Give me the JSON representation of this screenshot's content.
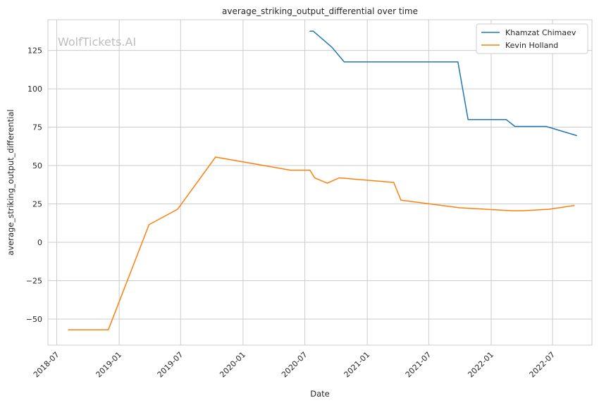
{
  "watermark": "WolfTickets.AI",
  "chart_data": {
    "type": "line",
    "title": "average_striking_output_differential over time",
    "xlabel": "Date",
    "ylabel": "average_striking_output_differential",
    "x_ticks": [
      "2018-07",
      "2019-01",
      "2019-07",
      "2020-01",
      "2020-07",
      "2021-01",
      "2021-07",
      "2022-01",
      "2022-07"
    ],
    "y_ticks": [
      -50,
      -25,
      0,
      25,
      50,
      75,
      100,
      125
    ],
    "xlim": [
      "2018-06-05",
      "2022-10-25"
    ],
    "ylim": [
      -67,
      145
    ],
    "grid": true,
    "legend_position": "top-right",
    "series": [
      {
        "name": "Khamzat Chimaev",
        "color": "#1f77b4",
        "points": [
          [
            "2020-07-16",
            137.5
          ],
          [
            "2020-07-26",
            137.5
          ],
          [
            "2020-09-19",
            127
          ],
          [
            "2020-10-25",
            117.5
          ],
          [
            "2021-09-25",
            117.5
          ],
          [
            "2021-10-25",
            80
          ],
          [
            "2022-02-14",
            80
          ],
          [
            "2022-03-12",
            75.5
          ],
          [
            "2022-06-12",
            75.5
          ],
          [
            "2022-09-10",
            69.5
          ]
        ]
      },
      {
        "name": "Kevin Holland",
        "color": "#ff7f0e",
        "points": [
          [
            "2018-08-04",
            -57
          ],
          [
            "2018-11-30",
            -57
          ],
          [
            "2019-03-30",
            11.5
          ],
          [
            "2019-06-22",
            21.5
          ],
          [
            "2019-10-12",
            55.5
          ],
          [
            "2020-05-20",
            47
          ],
          [
            "2020-07-16",
            47
          ],
          [
            "2020-07-30",
            42
          ],
          [
            "2020-09-05",
            38.5
          ],
          [
            "2020-10-10",
            42
          ],
          [
            "2021-03-20",
            39
          ],
          [
            "2021-04-10",
            27.5
          ],
          [
            "2021-10-01",
            22.5
          ],
          [
            "2022-03-05",
            20.5
          ],
          [
            "2022-04-01",
            20.5
          ],
          [
            "2022-06-20",
            21.5
          ],
          [
            "2022-09-03",
            24
          ]
        ]
      }
    ]
  }
}
